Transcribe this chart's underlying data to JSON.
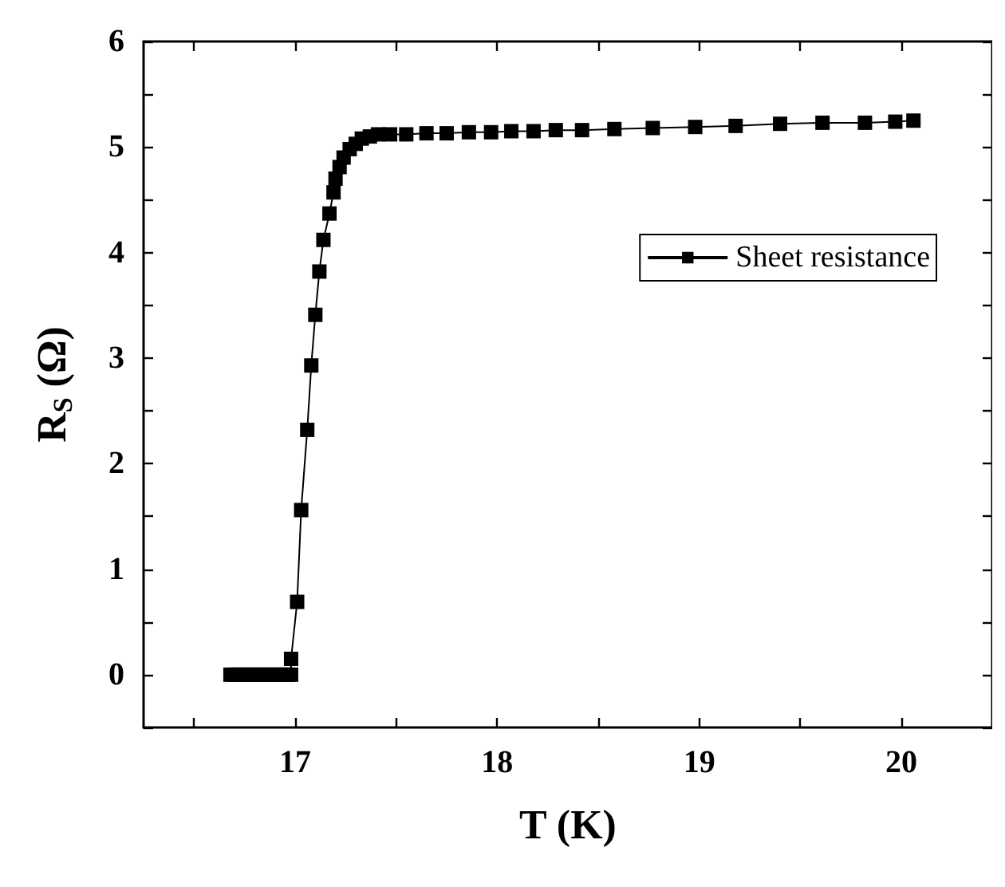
{
  "chart_data": {
    "type": "line",
    "xlabel": "T (K)",
    "ylabel": "R$_{S}$ (Ω)",
    "xlim": [
      16.25,
      20.45
    ],
    "ylim": [
      -0.5,
      6
    ],
    "xticks": [
      {
        "value": 16.5,
        "label": null
      },
      17,
      {
        "value": 17.5,
        "label": null
      },
      18,
      {
        "value": 18.5,
        "label": null
      },
      19,
      {
        "value": 19.5,
        "label": null
      },
      20
    ],
    "yticks": [
      {
        "value": -0.5,
        "label": null
      },
      0,
      {
        "value": 0.5,
        "label": null
      },
      1,
      {
        "value": 1.5,
        "label": null
      },
      2,
      {
        "value": 2.5,
        "label": null
      },
      3,
      {
        "value": 3.5,
        "label": null
      },
      4,
      {
        "value": 4.5,
        "label": null
      },
      5,
      {
        "value": 5.5,
        "label": null
      },
      6
    ],
    "grid": false,
    "legend": "top right",
    "marker": "square",
    "line_style": "solid",
    "series": [
      {
        "name": "Sheet resistance",
        "color": "#000000",
        "x": [
          16.68,
          16.7,
          16.72,
          16.74,
          16.76,
          16.78,
          16.8,
          16.82,
          16.84,
          16.86,
          16.88,
          16.9,
          16.92,
          16.94,
          16.96,
          16.98,
          16.98,
          17.01,
          17.03,
          17.06,
          17.08,
          17.1,
          17.12,
          17.14,
          17.17,
          17.19,
          17.2,
          17.22,
          17.24,
          17.27,
          17.3,
          17.33,
          17.37,
          17.41,
          17.47,
          17.55,
          17.65,
          17.75,
          17.86,
          17.97,
          18.07,
          18.18,
          18.29,
          18.42,
          18.58,
          18.77,
          18.98,
          19.18,
          19.4,
          19.61,
          19.82,
          19.97,
          20.06
        ],
        "values": [
          0,
          0,
          0,
          0,
          0,
          0,
          0,
          0,
          0,
          0,
          0,
          0,
          0,
          0,
          0,
          0,
          0.15,
          0.69,
          1.56,
          2.32,
          2.93,
          3.41,
          3.82,
          4.12,
          4.37,
          4.57,
          4.7,
          4.81,
          4.9,
          4.98,
          5.03,
          5.08,
          5.1,
          5.12,
          5.12,
          5.12,
          5.13,
          5.13,
          5.14,
          5.14,
          5.15,
          5.15,
          5.16,
          5.16,
          5.17,
          5.18,
          5.19,
          5.2,
          5.22,
          5.23,
          5.23,
          5.24,
          5.25
        ]
      }
    ]
  }
}
